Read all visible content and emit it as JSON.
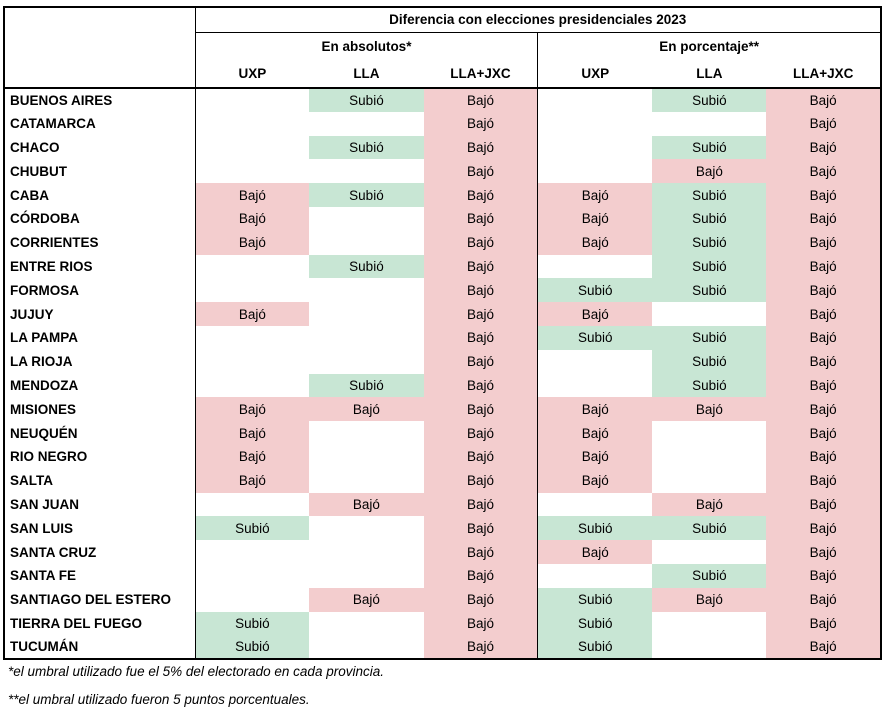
{
  "chart_data": {
    "type": "table",
    "title": "Diferencia con elecciones presidenciales 2023",
    "group_headers": [
      "En absolutos*",
      "En porcentaje**"
    ],
    "column_headers": [
      "UXP",
      "LLA",
      "LLA+JXC",
      "UXP",
      "LLA",
      "LLA+JXC"
    ],
    "values_legend": {
      "up": "Subió",
      "down": "Bajó",
      "blank": ""
    },
    "rows": [
      {
        "province": "BUENOS AIRES",
        "cells": [
          "",
          "Subió",
          "Bajó",
          "",
          "Subió",
          "Bajó"
        ]
      },
      {
        "province": "CATAMARCA",
        "cells": [
          "",
          "",
          "Bajó",
          "",
          "",
          "Bajó"
        ]
      },
      {
        "province": "CHACO",
        "cells": [
          "",
          "Subió",
          "Bajó",
          "",
          "Subió",
          "Bajó"
        ]
      },
      {
        "province": "CHUBUT",
        "cells": [
          "",
          "",
          "Bajó",
          "",
          "Bajó",
          "Bajó"
        ]
      },
      {
        "province": "CABA",
        "cells": [
          "Bajó",
          "Subió",
          "Bajó",
          "Bajó",
          "Subió",
          "Bajó"
        ]
      },
      {
        "province": "CÓRDOBA",
        "cells": [
          "Bajó",
          "",
          "Bajó",
          "Bajó",
          "Subió",
          "Bajó"
        ]
      },
      {
        "province": "CORRIENTES",
        "cells": [
          "Bajó",
          "",
          "Bajó",
          "Bajó",
          "Subió",
          "Bajó"
        ]
      },
      {
        "province": "ENTRE RIOS",
        "cells": [
          "",
          "Subió",
          "Bajó",
          "",
          "Subió",
          "Bajó"
        ]
      },
      {
        "province": "FORMOSA",
        "cells": [
          "",
          "",
          "Bajó",
          "Subió",
          "Subió",
          "Bajó"
        ]
      },
      {
        "province": "JUJUY",
        "cells": [
          "Bajó",
          "",
          "Bajó",
          "Bajó",
          "",
          "Bajó"
        ]
      },
      {
        "province": "LA PAMPA",
        "cells": [
          "",
          "",
          "Bajó",
          "Subió",
          "Subió",
          "Bajó"
        ]
      },
      {
        "province": "LA RIOJA",
        "cells": [
          "",
          "",
          "Bajó",
          "",
          "Subió",
          "Bajó"
        ]
      },
      {
        "province": "MENDOZA",
        "cells": [
          "",
          "Subió",
          "Bajó",
          "",
          "Subió",
          "Bajó"
        ]
      },
      {
        "province": "MISIONES",
        "cells": [
          "Bajó",
          "Bajó",
          "Bajó",
          "Bajó",
          "Bajó",
          "Bajó"
        ]
      },
      {
        "province": "NEUQUÉN",
        "cells": [
          "Bajó",
          "",
          "Bajó",
          "Bajó",
          "",
          "Bajó"
        ]
      },
      {
        "province": "RIO NEGRO",
        "cells": [
          "Bajó",
          "",
          "Bajó",
          "Bajó",
          "",
          "Bajó"
        ]
      },
      {
        "province": "SALTA",
        "cells": [
          "Bajó",
          "",
          "Bajó",
          "Bajó",
          "",
          "Bajó"
        ]
      },
      {
        "province": "SAN JUAN",
        "cells": [
          "",
          "Bajó",
          "Bajó",
          "",
          "Bajó",
          "Bajó"
        ]
      },
      {
        "province": "SAN LUIS",
        "cells": [
          "Subió",
          "",
          "Bajó",
          "Subió",
          "Subió",
          "Bajó"
        ]
      },
      {
        "province": "SANTA CRUZ",
        "cells": [
          "",
          "",
          "Bajó",
          "Bajó",
          "",
          "Bajó"
        ]
      },
      {
        "province": "SANTA FE",
        "cells": [
          "",
          "",
          "Bajó",
          "",
          "Subió",
          "Bajó"
        ]
      },
      {
        "province": "SANTIAGO DEL ESTERO",
        "cells": [
          "",
          "Bajó",
          "Bajó",
          "Subió",
          "Bajó",
          "Bajó"
        ]
      },
      {
        "province": "TIERRA DEL FUEGO",
        "cells": [
          "Subió",
          "",
          "Bajó",
          "Subió",
          "",
          "Bajó"
        ]
      },
      {
        "province": "TUCUMÁN",
        "cells": [
          "Subió",
          "",
          "Bajó",
          "Subió",
          "",
          "Bajó"
        ]
      }
    ],
    "footnotes": [
      "*el umbral utilizado fue el 5% del electorado en cada provincia.",
      "**el umbral utilizado fueron 5 puntos porcentuales."
    ]
  },
  "colors": {
    "up_bg": "#c8e6d4",
    "down_bg": "#f3cdce",
    "border": "#000000",
    "text": "#000000",
    "background": "#ffffff"
  }
}
